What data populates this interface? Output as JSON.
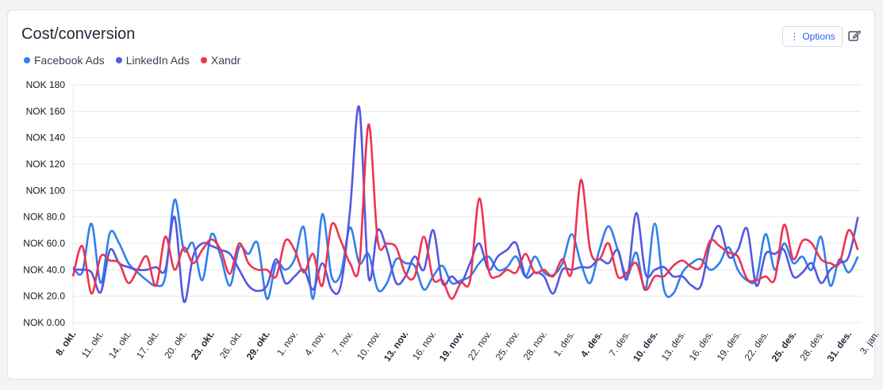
{
  "header": {
    "title": "Cost/conversion",
    "options_label": "Options",
    "options_icon": "vertical-dots-icon",
    "edit_icon": "edit-icon"
  },
  "colors": {
    "facebook": "#2f80ed",
    "linkedin": "#5457e0",
    "xandr": "#f0334f"
  },
  "chart_data": {
    "type": "line",
    "title": "Cost/conversion",
    "ylabel": "",
    "xlabel": "",
    "ylim": [
      0,
      180
    ],
    "y_ticks": [
      "NOK 0.00",
      "NOK 20.0",
      "NOK 40.0",
      "NOK 60.0",
      "NOK 80.0",
      "NOK 100",
      "NOK 120",
      "NOK 140",
      "NOK 160",
      "NOK 180"
    ],
    "y_tick_values": [
      0,
      20,
      40,
      60,
      80,
      100,
      120,
      140,
      160,
      180
    ],
    "x_ticks": [
      {
        "label": "8. okt.",
        "bold": true
      },
      {
        "label": "11. okt.",
        "bold": false
      },
      {
        "label": "14. okt.",
        "bold": false
      },
      {
        "label": "17. okt.",
        "bold": false
      },
      {
        "label": "20. okt.",
        "bold": false
      },
      {
        "label": "23. okt.",
        "bold": true
      },
      {
        "label": "26. okt.",
        "bold": false
      },
      {
        "label": "29. okt.",
        "bold": true
      },
      {
        "label": "1. nov.",
        "bold": false
      },
      {
        "label": "4. nov.",
        "bold": false
      },
      {
        "label": "7. nov.",
        "bold": false
      },
      {
        "label": "10. nov.",
        "bold": false
      },
      {
        "label": "13. nov.",
        "bold": true
      },
      {
        "label": "16. nov.",
        "bold": false
      },
      {
        "label": "19. nov.",
        "bold": true
      },
      {
        "label": "22. nov.",
        "bold": false
      },
      {
        "label": "25. nov.",
        "bold": false
      },
      {
        "label": "28. nov.",
        "bold": false
      },
      {
        "label": "1. des.",
        "bold": false
      },
      {
        "label": "4. des.",
        "bold": true
      },
      {
        "label": "7. des.",
        "bold": false
      },
      {
        "label": "10. des.",
        "bold": true
      },
      {
        "label": "13. des.",
        "bold": false
      },
      {
        "label": "16. des.",
        "bold": false
      },
      {
        "label": "19. des.",
        "bold": false
      },
      {
        "label": "22. des.",
        "bold": false
      },
      {
        "label": "25. des.",
        "bold": true
      },
      {
        "label": "28. des.",
        "bold": false
      },
      {
        "label": "31. des.",
        "bold": true
      },
      {
        "label": "3. jan.",
        "bold": false
      }
    ],
    "x_tick_interval_days": 3,
    "legend_position": "top-left",
    "grid": true,
    "series": [
      {
        "name": "Facebook Ads",
        "key": "facebook",
        "values": [
          42,
          38,
          75,
          30,
          68,
          60,
          45,
          38,
          32,
          28,
          35,
          93,
          55,
          60,
          32,
          67,
          50,
          28,
          57,
          52,
          60,
          18,
          45,
          40,
          48,
          72,
          18,
          82,
          35,
          37,
          72,
          45,
          52,
          25,
          30,
          48,
          45,
          43,
          25,
          35,
          43,
          30,
          32,
          35,
          45,
          50,
          40,
          42,
          50,
          35,
          50,
          38,
          36,
          45,
          67,
          45,
          30,
          55,
          73,
          55,
          35,
          53,
          25,
          75,
          25,
          22,
          38,
          45,
          48,
          40,
          45,
          57,
          40,
          32,
          33,
          67,
          40,
          60,
          45,
          50,
          40,
          65,
          28,
          48,
          38,
          50
        ]
      },
      {
        "name": "LinkedIn Ads",
        "key": "linkedin",
        "values": [
          40,
          40,
          38,
          23,
          55,
          45,
          42,
          40,
          40,
          42,
          40,
          80,
          16,
          50,
          60,
          58,
          55,
          52,
          40,
          28,
          24,
          28,
          48,
          30,
          35,
          40,
          25,
          45,
          25,
          28,
          85,
          163,
          35,
          70,
          55,
          30,
          35,
          50,
          40,
          70,
          30,
          35,
          30,
          45,
          60,
          40,
          50,
          55,
          60,
          35,
          38,
          35,
          22,
          40,
          40,
          42,
          42,
          48,
          45,
          55,
          33,
          83,
          37,
          40,
          42,
          35,
          35,
          28,
          28,
          60,
          73,
          50,
          55,
          71,
          28,
          52,
          52,
          55,
          35,
          38,
          45,
          30,
          40,
          45,
          50,
          80
        ]
      },
      {
        "name": "Xandr",
        "key": "xandr",
        "values": [
          35,
          58,
          22,
          50,
          47,
          45,
          30,
          40,
          50,
          28,
          65,
          40,
          57,
          45,
          55,
          63,
          55,
          37,
          60,
          45,
          40,
          40,
          35,
          62,
          55,
          38,
          52,
          28,
          74,
          62,
          45,
          43,
          150,
          62,
          60,
          57,
          37,
          35,
          65,
          33,
          32,
          18,
          30,
          32,
          94,
          40,
          35,
          40,
          38,
          52,
          38,
          40,
          35,
          48,
          38,
          108,
          55,
          48,
          60,
          35,
          38,
          45,
          25,
          35,
          35,
          43,
          47,
          42,
          42,
          62,
          58,
          53,
          50,
          33,
          32,
          35,
          33,
          74,
          48,
          62,
          60,
          48,
          45,
          45,
          70,
          55
        ]
      }
    ]
  }
}
